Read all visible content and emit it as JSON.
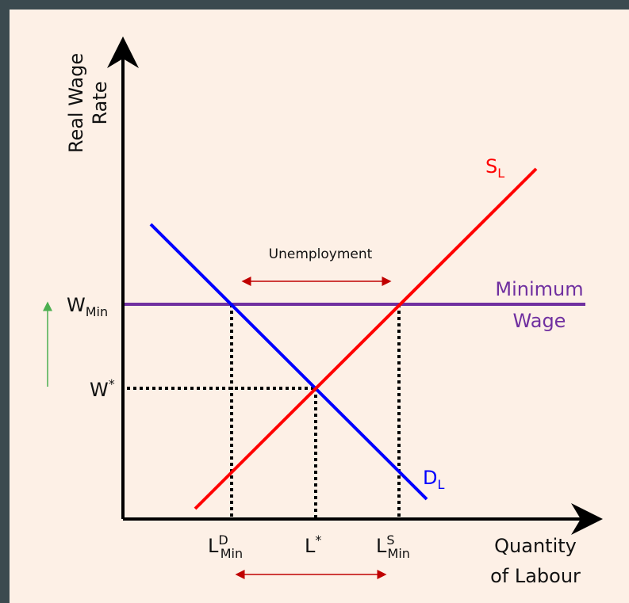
{
  "y_axis_label": [
    "Real Wage",
    "Rate"
  ],
  "x_axis_label": [
    "Quantity",
    "of Labour"
  ],
  "supply_curve": {
    "label": "S",
    "subscript": "L"
  },
  "demand_curve": {
    "label": "D",
    "subscript": "L"
  },
  "minimum_wage_line": [
    "Minimum",
    "Wage"
  ],
  "annotation": "Unemployment",
  "y_labels": [
    {
      "main": "W",
      "subscript": "Min"
    },
    {
      "main": "W",
      "superscript": "*"
    }
  ],
  "x_labels": [
    {
      "main": "L",
      "superscript": "D",
      "subscript": "Min"
    },
    {
      "main": "L",
      "superscript": "*"
    },
    {
      "main": "L",
      "superscript": "S",
      "subscript": "Min"
    }
  ]
}
